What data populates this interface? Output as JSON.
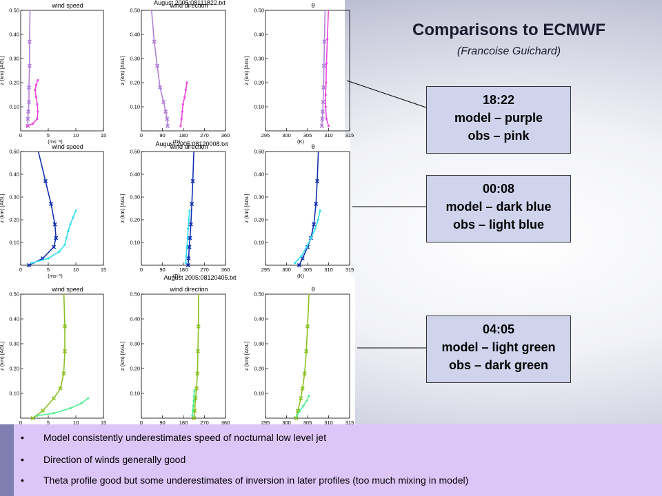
{
  "title": "Comparisons to ECMWF",
  "subtitle": "(Francoise Guichard)",
  "legend": [
    {
      "time": "18:22",
      "model": "model – purple",
      "obs": "obs – pink"
    },
    {
      "time": "00:08",
      "model": "model – dark blue",
      "obs": "obs – light blue"
    },
    {
      "time": "04:05",
      "model": "model – light green",
      "obs": "obs – dark green"
    }
  ],
  "bullets": [
    "Model consistently underestimates speed of nocturnal low level jet",
    "Direction of winds generally good",
    "Theta profile good but some underestimates of inversion in later profiles (too much mixing in model)"
  ],
  "bullet_symbol": "•",
  "colors": {
    "model_18": "#b080d8",
    "obs_18": "#ee44dd",
    "model_00": "#1030b0",
    "obs_00": "#30e0f0",
    "model_04": "#88c020",
    "obs_04": "#50ee90"
  },
  "chart_data": [
    {
      "type": "line",
      "file_title": "August 2005:08111822.txt",
      "panels": [
        {
          "title": "wind speed",
          "xticks": [
            "0",
            "5",
            "10",
            "15"
          ],
          "xlim": [
            0,
            15
          ],
          "xunit": "(ms⁻¹)",
          "ylabel": "z (km) [AGL]",
          "yticks": [
            "0.10",
            "0.20",
            "0.30",
            "0.40",
            "0.50"
          ],
          "ylim": [
            0,
            0.5
          ],
          "series": [
            {
              "role": "model",
              "color": "#b080d8",
              "values": [
                [
                  1.3,
                  0.02
                ],
                [
                  1.3,
                  0.05
                ],
                [
                  1.4,
                  0.08
                ],
                [
                  1.5,
                  0.12
                ],
                [
                  1.5,
                  0.18
                ],
                [
                  1.6,
                  0.27
                ],
                [
                  1.6,
                  0.37
                ],
                [
                  1.7,
                  0.52
                ]
              ]
            },
            {
              "role": "obs",
              "color": "#ee44dd",
              "values": [
                [
                  1.2,
                  0.02
                ],
                [
                  2.2,
                  0.03
                ],
                [
                  3.0,
                  0.05
                ],
                [
                  3.1,
                  0.08
                ],
                [
                  3.0,
                  0.11
                ],
                [
                  2.8,
                  0.14
                ],
                [
                  2.6,
                  0.17
                ],
                [
                  2.8,
                  0.19
                ],
                [
                  3.1,
                  0.21
                ]
              ]
            }
          ]
        },
        {
          "title": "wind direction",
          "xticks": [
            "0",
            "90",
            "180",
            "270",
            "360"
          ],
          "xlim": [
            0,
            360
          ],
          "xunit": "(D)",
          "ylabel": "z (km) [AGL]",
          "yticks": [
            "0.10",
            "0.20",
            "0.30",
            "0.40",
            "0.50"
          ],
          "ylim": [
            0,
            0.5
          ],
          "series": [
            {
              "role": "model",
              "color": "#b080d8",
              "values": [
                [
                  112,
                  0.02
                ],
                [
                  110,
                  0.05
                ],
                [
                  104,
                  0.08
                ],
                [
                  95,
                  0.12
                ],
                [
                  80,
                  0.18
                ],
                [
                  68,
                  0.27
                ],
                [
                  55,
                  0.37
                ],
                [
                  42,
                  0.52
                ]
              ]
            },
            {
              "role": "obs",
              "color": "#ee44dd",
              "values": [
                [
                  168,
                  0.02
                ],
                [
                  172,
                  0.05
                ],
                [
                  175,
                  0.08
                ],
                [
                  178,
                  0.11
                ],
                [
                  185,
                  0.14
                ],
                [
                  190,
                  0.17
                ],
                [
                  195,
                  0.2
                ]
              ]
            }
          ]
        },
        {
          "title": "θ",
          "xticks": [
            "295",
            "300",
            "305",
            "310",
            "315"
          ],
          "xlim": [
            295,
            315
          ],
          "xunit": "(K)",
          "ylabel": "z (km) [AGL]",
          "yticks": [
            "0.10",
            "0.20",
            "0.30",
            "0.40",
            "0.50"
          ],
          "ylim": [
            0,
            0.5
          ],
          "series": [
            {
              "role": "model",
              "color": "#b080d8",
              "values": [
                [
                  308.4,
                  0.02
                ],
                [
                  308.5,
                  0.05
                ],
                [
                  308.6,
                  0.08
                ],
                [
                  308.7,
                  0.12
                ],
                [
                  308.8,
                  0.18
                ],
                [
                  308.9,
                  0.27
                ],
                [
                  309.0,
                  0.37
                ],
                [
                  309.2,
                  0.52
                ]
              ]
            },
            {
              "role": "obs",
              "color": "#ee44dd",
              "values": [
                [
                  310.0,
                  0.02
                ],
                [
                  309.5,
                  0.05
                ],
                [
                  309.3,
                  0.1
                ],
                [
                  309.3,
                  0.15
                ],
                [
                  309.4,
                  0.2
                ],
                [
                  309.5,
                  0.28
                ],
                [
                  309.7,
                  0.38
                ],
                [
                  310.0,
                  0.52
                ]
              ]
            }
          ]
        }
      ]
    },
    {
      "type": "line",
      "file_title": "August 2005:08120008.txt",
      "panels": [
        {
          "title": "wind speed",
          "xticks": [
            "0",
            "5",
            "10",
            "15"
          ],
          "xlim": [
            0,
            15
          ],
          "xunit": "(ms⁻¹)",
          "ylabel": "z (km) [AGL]",
          "yticks": [
            "0.10",
            "0.20",
            "0.30",
            "0.40",
            "0.50"
          ],
          "ylim": [
            0,
            0.5
          ],
          "series": [
            {
              "role": "model",
              "color": "#1030b0",
              "values": [
                [
                  1.5,
                  0.0
                ],
                [
                  4.0,
                  0.03
                ],
                [
                  6.0,
                  0.08
                ],
                [
                  6.4,
                  0.12
                ],
                [
                  6.2,
                  0.18
                ],
                [
                  5.5,
                  0.27
                ],
                [
                  4.5,
                  0.37
                ],
                [
                  3.0,
                  0.52
                ]
              ]
            },
            {
              "role": "obs",
              "color": "#30e0f0",
              "values": [
                [
                  2.0,
                  0.01
                ],
                [
                  5.0,
                  0.03
                ],
                [
                  7.0,
                  0.06
                ],
                [
                  8.0,
                  0.09
                ],
                [
                  8.3,
                  0.12
                ],
                [
                  8.6,
                  0.15
                ],
                [
                  9.0,
                  0.18
                ],
                [
                  9.5,
                  0.21
                ],
                [
                  10.0,
                  0.24
                ]
              ]
            }
          ]
        },
        {
          "title": "wind direction",
          "xticks": [
            "0",
            "90",
            "180",
            "270",
            "360"
          ],
          "xlim": [
            0,
            360
          ],
          "xunit": "(D)",
          "ylabel": "z (km) [AGL]",
          "yticks": [
            "0.10",
            "0.20",
            "0.30",
            "0.40",
            "0.50"
          ],
          "ylim": [
            0,
            0.5
          ],
          "series": [
            {
              "role": "model",
              "color": "#1030b0",
              "values": [
                [
                  200,
                  0.0
                ],
                [
                  202,
                  0.03
                ],
                [
                  205,
                  0.08
                ],
                [
                  208,
                  0.12
                ],
                [
                  212,
                  0.18
                ],
                [
                  216,
                  0.27
                ],
                [
                  220,
                  0.37
                ],
                [
                  225,
                  0.52
                ]
              ]
            },
            {
              "role": "obs",
              "color": "#30e0f0",
              "values": [
                [
                  190,
                  0.01
                ],
                [
                  192,
                  0.04
                ],
                [
                  195,
                  0.08
                ],
                [
                  198,
                  0.12
                ],
                [
                  200,
                  0.16
                ],
                [
                  203,
                  0.2
                ],
                [
                  206,
                  0.24
                ]
              ]
            }
          ]
        },
        {
          "title": "θ",
          "xticks": [
            "295",
            "300",
            "305",
            "310",
            "315"
          ],
          "xlim": [
            295,
            315
          ],
          "xunit": "(K)",
          "ylabel": "z (km) [AGL]",
          "yticks": [
            "0.10",
            "0.20",
            "0.30",
            "0.40",
            "0.50"
          ],
          "ylim": [
            0,
            0.5
          ],
          "series": [
            {
              "role": "model",
              "color": "#1030b0",
              "values": [
                [
                  303.0,
                  0.0
                ],
                [
                  303.8,
                  0.03
                ],
                [
                  305.0,
                  0.08
                ],
                [
                  305.8,
                  0.12
                ],
                [
                  306.5,
                  0.18
                ],
                [
                  307.0,
                  0.27
                ],
                [
                  307.3,
                  0.37
                ],
                [
                  307.6,
                  0.52
                ]
              ]
            },
            {
              "role": "obs",
              "color": "#30e0f0",
              "values": [
                [
                  302.0,
                  0.01
                ],
                [
                  303.5,
                  0.04
                ],
                [
                  304.8,
                  0.08
                ],
                [
                  305.8,
                  0.12
                ],
                [
                  306.8,
                  0.16
                ],
                [
                  307.5,
                  0.2
                ],
                [
                  308.0,
                  0.24
                ]
              ]
            }
          ]
        }
      ]
    },
    {
      "type": "line",
      "file_title": "August 2005:08120405.txt",
      "panels": [
        {
          "title": "wind speed",
          "xticks": [
            "0",
            "5",
            "10",
            "15"
          ],
          "xlim": [
            0,
            15
          ],
          "xunit": "(ms⁻¹)",
          "ylabel": "z (km) [AGL]",
          "yticks": [
            "0.10",
            "0.20",
            "0.30",
            "0.40",
            "0.50"
          ],
          "ylim": [
            0,
            0.5
          ],
          "series": [
            {
              "role": "model",
              "color": "#88c020",
              "values": [
                [
                  2.2,
                  0.0
                ],
                [
                  4.0,
                  0.03
                ],
                [
                  6.0,
                  0.08
                ],
                [
                  7.2,
                  0.12
                ],
                [
                  7.8,
                  0.18
                ],
                [
                  8.0,
                  0.27
                ],
                [
                  8.0,
                  0.37
                ],
                [
                  7.8,
                  0.52
                ]
              ]
            },
            {
              "role": "obs",
              "color": "#50ee90",
              "values": [
                [
                  3.0,
                  0.01
                ],
                [
                  6.0,
                  0.02
                ],
                [
                  9.0,
                  0.04
                ],
                [
                  11.0,
                  0.06
                ],
                [
                  12.2,
                  0.08
                ]
              ]
            }
          ]
        },
        {
          "title": "wind direction",
          "xticks": [
            "0",
            "90",
            "180",
            "270",
            "360"
          ],
          "xlim": [
            0,
            360
          ],
          "xunit": "(D)",
          "ylabel": "z (km) [AGL]",
          "yticks": [
            "0.10",
            "0.20",
            "0.30",
            "0.40",
            "0.50"
          ],
          "ylim": [
            0,
            0.5
          ],
          "series": [
            {
              "role": "model",
              "color": "#88c020",
              "values": [
                [
                  225,
                  0.0
                ],
                [
                  228,
                  0.03
                ],
                [
                  232,
                  0.08
                ],
                [
                  236,
                  0.12
                ],
                [
                  240,
                  0.18
                ],
                [
                  242,
                  0.27
                ],
                [
                  244,
                  0.37
                ],
                [
                  245,
                  0.52
                ]
              ]
            },
            {
              "role": "obs",
              "color": "#50ee90",
              "values": [
                [
                  218,
                  0.01
                ],
                [
                  220,
                  0.03
                ],
                [
                  222,
                  0.05
                ],
                [
                  224,
                  0.07
                ],
                [
                  225,
                  0.09
                ],
                [
                  227,
                  0.11
                ]
              ]
            }
          ]
        },
        {
          "title": "θ",
          "xticks": [
            "295",
            "300",
            "305",
            "310",
            "315"
          ],
          "xlim": [
            295,
            315
          ],
          "xunit": "(K)",
          "ylabel": "z (km) [AGL]",
          "yticks": [
            "0.10",
            "0.20",
            "0.30",
            "0.40",
            "0.50"
          ],
          "ylim": [
            0,
            0.5
          ],
          "series": [
            {
              "role": "model",
              "color": "#88c020",
              "values": [
                [
                  302.3,
                  0.0
                ],
                [
                  302.7,
                  0.03
                ],
                [
                  303.4,
                  0.08
                ],
                [
                  303.8,
                  0.12
                ],
                [
                  304.3,
                  0.18
                ],
                [
                  304.7,
                  0.27
                ],
                [
                  305.0,
                  0.37
                ],
                [
                  305.4,
                  0.52
                ]
              ]
            },
            {
              "role": "obs",
              "color": "#50ee90",
              "values": [
                [
                  302.5,
                  0.01
                ],
                [
                  303.2,
                  0.03
                ],
                [
                  304.0,
                  0.05
                ],
                [
                  304.8,
                  0.07
                ],
                [
                  305.3,
                  0.09
                ]
              ]
            }
          ]
        }
      ]
    }
  ]
}
